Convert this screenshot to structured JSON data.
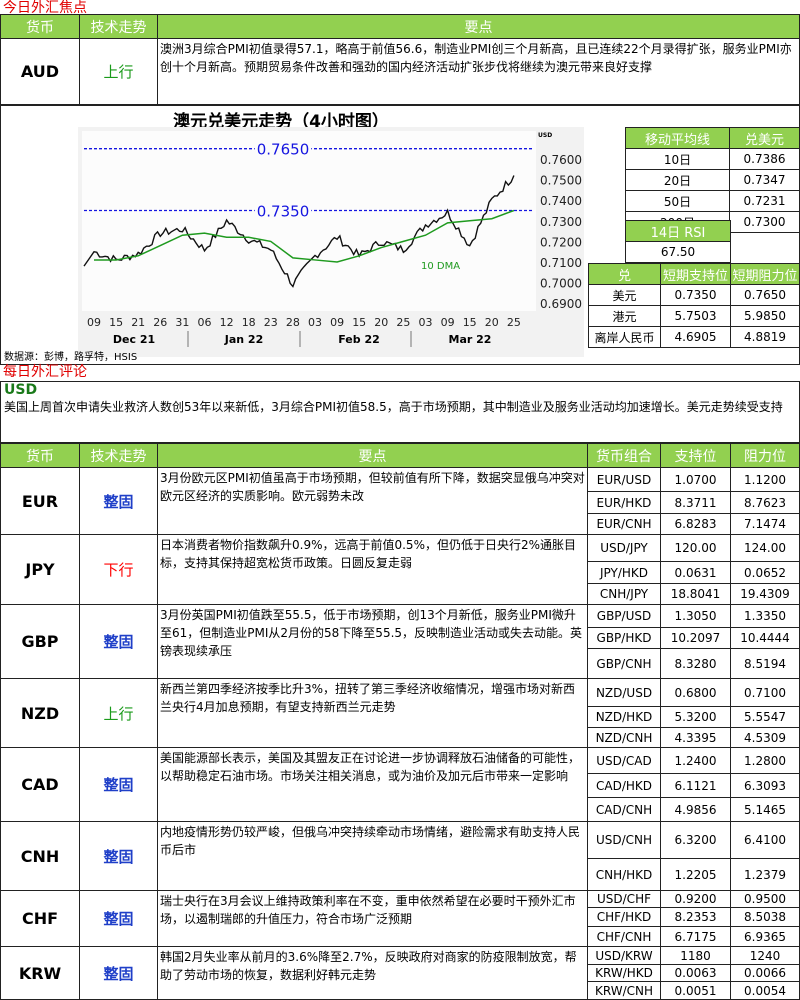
{
  "focus": {
    "title": "今日外汇焦点",
    "headers": [
      "货币",
      "技术走势",
      "要点"
    ],
    "aud": {
      "currency": "AUD",
      "trend": "上行",
      "note": "澳洲3月综合PMI初值录得57.1，略高于前值56.6，制造业PMI创三个月新高，且已连续22个月录得扩张，服务业PMI亦创十个月新高。预期贸易条件改善和强劲的国内经济活动扩张步伐将继续为澳元带来良好支撑"
    }
  },
  "chart": {
    "title": "澳元兑美元走势（4小时图）",
    "source": "数据源：彭博，路孚特，HSIS"
  },
  "chart_data": {
    "type": "line",
    "title": "澳元兑美元走势（4小时图）",
    "ylabel": "USD",
    "ylim": [
      0.685,
      0.77
    ],
    "y_ticks": [
      "0.7600",
      "0.7500",
      "0.7400",
      "0.7300",
      "0.7200",
      "0.7100",
      "0.7000",
      "0.6900"
    ],
    "x_ticks": [
      "09",
      "15",
      "21",
      "26",
      "31",
      "06",
      "12",
      "18",
      "23",
      "28",
      "03",
      "09",
      "15",
      "20",
      "25",
      "03",
      "09",
      "15",
      "20",
      "25"
    ],
    "months": [
      "Dec 21",
      "Jan 22",
      "Feb 22",
      "Mar 22"
    ],
    "series": [
      {
        "values": [
          0.715,
          0.711,
          0.714,
          0.724,
          0.726,
          0.716,
          0.73,
          0.721,
          0.716,
          0.699,
          0.713,
          0.722,
          0.713,
          0.72,
          0.716,
          0.728,
          0.734,
          0.718,
          0.74,
          0.752
        ]
      },
      {
        "name": "10 DMA",
        "values": [
          0.711,
          0.711,
          0.713,
          0.718,
          0.723,
          0.724,
          0.722,
          0.722,
          0.72,
          0.712,
          0.711,
          0.71,
          0.713,
          0.717,
          0.72,
          0.723,
          0.729,
          0.73,
          0.731,
          0.735
        ]
      }
    ],
    "hlines": [
      {
        "label": "0.7650",
        "value": 0.765
      },
      {
        "label": "0.7350",
        "value": 0.735
      }
    ],
    "colors": {
      "price": "#111111",
      "dma": "#1f9a1f",
      "hline": "#1515e0"
    }
  },
  "ma": {
    "headers": [
      "移动平均线",
      "兑美元"
    ],
    "rows": [
      [
        "10日",
        "0.7386"
      ],
      [
        "20日",
        "0.7347"
      ],
      [
        "50日",
        "0.7231"
      ],
      [
        "200日",
        "0.7300"
      ]
    ]
  },
  "rsi": {
    "header": "14日 RSI",
    "value": "67.50"
  },
  "levels": {
    "headers": [
      "兑",
      "短期支持位",
      "短期阻力位"
    ],
    "rows": [
      [
        "美元",
        "0.7350",
        "0.7650"
      ],
      [
        "港元",
        "5.7503",
        "5.9850"
      ],
      [
        "离岸人民币",
        "4.6905",
        "4.8819"
      ]
    ]
  },
  "review": {
    "title": "每日外汇评论",
    "usd": {
      "currency": "USD",
      "note": "美国上周首次申请失业救济人数创53年以来新低，3月综合PMI初值58.5，高于市场预期，其中制造业及服务业活动均加速增长。美元走势续受支持"
    },
    "headers": [
      "货币",
      "技术走势",
      "要点",
      "货币组合",
      "支持位",
      "阻力位"
    ],
    "rows": [
      {
        "currency": "EUR",
        "trend": "整固",
        "cls": "flat",
        "note": "3月份欧元区PMI初值虽高于市场预期，但较前值有所下降，数据突显俄乌冲突对欧元区经济的实质影响。欧元弱势未改",
        "pairs": [
          [
            "EUR/USD",
            "1.0700",
            "1.1200"
          ],
          [
            "EUR/HKD",
            "8.3711",
            "8.7623"
          ],
          [
            "EUR/CNH",
            "6.8283",
            "7.1474"
          ]
        ]
      },
      {
        "currency": "JPY",
        "trend": "下行",
        "cls": "down",
        "note": "日本消费者物价指数飙升0.9%，远高于前值0.5%，但仍低于日央行2%通胀目标，支持其保持超宽松货币政策。日圆反复走弱",
        "pairs": [
          [
            "USD/JPY",
            "120.00",
            "124.00"
          ],
          [
            "JPY/HKD",
            "0.0631",
            "0.0652"
          ],
          [
            "CNH/JPY",
            "18.8041",
            "19.4309"
          ]
        ]
      },
      {
        "currency": "GBP",
        "trend": "整固",
        "cls": "flat",
        "note": "3月份英国PMI初值跌至55.5，低于市场预期，创13个月新低，服务业PMI微升至61，但制造业PMI从2月份的58下降至55.5，反映制造业活动或失去动能。英镑表现续承压",
        "pairs": [
          [
            "GBP/USD",
            "1.3050",
            "1.3350"
          ],
          [
            "GBP/HKD",
            "10.2097",
            "10.4444"
          ],
          [
            "GBP/CNH",
            "8.3280",
            "8.5194"
          ]
        ]
      },
      {
        "currency": "NZD",
        "trend": "上行",
        "cls": "up",
        "note": "新西兰第四季经济按季比升3%，扭转了第三季经济收缩情况，增强市场对新西兰央行4月加息预期，有望支持新西兰元走势",
        "pairs": [
          [
            "NZD/USD",
            "0.6800",
            "0.7100"
          ],
          [
            "NZD/HKD",
            "5.3200",
            "5.5547"
          ],
          [
            "NZD/CNH",
            "4.3395",
            "4.5309"
          ]
        ]
      },
      {
        "currency": "CAD",
        "trend": "整固",
        "cls": "flat",
        "note": "美国能源部长表示，美国及其盟友正在讨论进一步协调释放石油储备的可能性，以帮助稳定石油市场。市场关注相关消息，或为油价及加元后市带来一定影响",
        "pairs": [
          [
            "USD/CAD",
            "1.2400",
            "1.2800"
          ],
          [
            "CAD/HKD",
            "6.1121",
            "6.3093"
          ],
          [
            "CAD/CNH",
            "4.9856",
            "5.1465"
          ]
        ]
      },
      {
        "currency": "CNH",
        "trend": "整固",
        "cls": "flat",
        "note": "内地疫情形势仍较严峻，但俄乌冲突持续牵动市场情绪，避险需求有助支持人民币后市",
        "pairs": [
          [
            "USD/CNH",
            "6.3200",
            "6.4100"
          ],
          [
            "CNH/HKD",
            "1.2205",
            "1.2379"
          ]
        ]
      },
      {
        "currency": "CHF",
        "trend": "整固",
        "cls": "flat",
        "note": "瑞士央行在3月会议上维持政策利率在不变，重申依然希望在必要时干预外汇市场，以遏制瑞郎的升值压力，符合市场广泛预期",
        "pairs": [
          [
            "USD/CHF",
            "0.9200",
            "0.9500"
          ],
          [
            "CHF/HKD",
            "8.2353",
            "8.5038"
          ],
          [
            "CHF/CNH",
            "6.7175",
            "6.9365"
          ]
        ]
      },
      {
        "currency": "KRW",
        "trend": "整固",
        "cls": "flat",
        "note": "韩国2月失业率从前月的3.6%降至2.7%，反映政府对商家的防疫限制放宽，帮助了劳动市场的恢复，数据利好韩元走势",
        "pairs": [
          [
            "USD/KRW",
            "1180",
            "1240"
          ],
          [
            "KRW/HKD",
            "0.0063",
            "0.0066"
          ],
          [
            "KRW/CNH",
            "0.0051",
            "0.0054"
          ]
        ]
      }
    ]
  }
}
